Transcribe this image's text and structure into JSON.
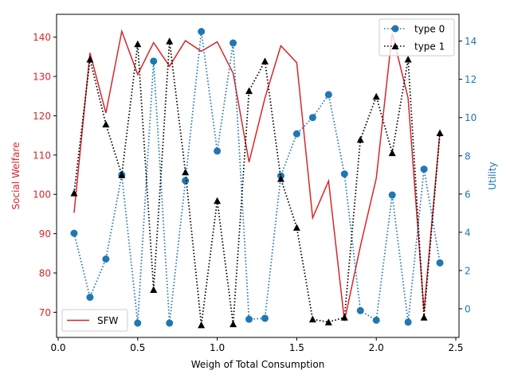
{
  "chart_data": {
    "type": "line",
    "title": "",
    "xlabel": "Weigh of Total Consumption",
    "ylabel_left": "Social Welfare",
    "ylabel_right": "Utility",
    "xlim": [
      -0.01,
      2.52
    ],
    "ylim_left": [
      63.6,
      145.8
    ],
    "ylim_right": [
      -1.5,
      15.4
    ],
    "x_ticks": [
      0.0,
      0.5,
      1.0,
      1.5,
      2.0,
      2.5
    ],
    "x_tick_labels": [
      "0.0",
      "0.5",
      "1.0",
      "1.5",
      "2.0",
      "2.5"
    ],
    "y_left_ticks": [
      70,
      80,
      90,
      100,
      110,
      120,
      130,
      140
    ],
    "y_left_tick_labels": [
      "70",
      "80",
      "90",
      "100",
      "110",
      "120",
      "130",
      "140"
    ],
    "y_right_ticks": [
      0,
      2,
      4,
      6,
      8,
      10,
      12,
      14
    ],
    "y_right_tick_labels": [
      "0",
      "2",
      "4",
      "6",
      "8",
      "10",
      "12",
      "14"
    ],
    "colors": {
      "left_axis": "#d62728",
      "right_axis": "#1f77b4",
      "sfw": "#d62728",
      "type0": "#1f77b4",
      "type1": "#000000"
    },
    "x": [
      0.1,
      0.2,
      0.3,
      0.4,
      0.5,
      0.6,
      0.7,
      0.8,
      0.9,
      1.0,
      1.1,
      1.2,
      1.3,
      1.4,
      1.5,
      1.6,
      1.7,
      1.8,
      1.9,
      2.0,
      2.1,
      2.2,
      2.3,
      2.4
    ],
    "series": [
      {
        "name": "SFW",
        "axis": "left",
        "style": "solid",
        "marker": "none",
        "values": [
          95.3,
          136.0,
          120.7,
          141.5,
          130.5,
          138.6,
          132.6,
          139.1,
          136.4,
          138.8,
          130.8,
          108.2,
          124.5,
          137.8,
          133.5,
          94.0,
          103.4,
          67.8,
          86.8,
          104.1,
          141.0,
          124.5,
          70.3,
          115.9
        ]
      },
      {
        "name": "type 0",
        "axis": "right",
        "style": "dotted",
        "marker": "circle",
        "values": [
          3.95,
          0.6,
          2.6,
          7.0,
          -0.75,
          12.95,
          -0.75,
          6.7,
          14.5,
          8.25,
          13.9,
          -0.55,
          -0.5,
          6.95,
          9.15,
          10.0,
          11.2,
          7.05,
          -0.1,
          -0.6,
          5.95,
          -0.7,
          7.3,
          2.4
        ]
      },
      {
        "name": "type 1",
        "axis": "right",
        "style": "dotted",
        "marker": "triangle",
        "values": [
          6.05,
          13.05,
          9.65,
          7.0,
          13.85,
          1.0,
          14.0,
          7.15,
          -0.85,
          5.65,
          -0.8,
          11.4,
          12.95,
          6.8,
          4.25,
          -0.55,
          -0.7,
          -0.45,
          8.85,
          11.1,
          8.15,
          13.05,
          -0.45,
          9.2
        ]
      }
    ],
    "legend": {
      "left_axis": {
        "placement": "lower-left",
        "entries": [
          "SFW"
        ]
      },
      "right_axis": {
        "placement": "upper-right",
        "entries": [
          "type 0",
          "type 1"
        ]
      }
    },
    "grid": false
  }
}
